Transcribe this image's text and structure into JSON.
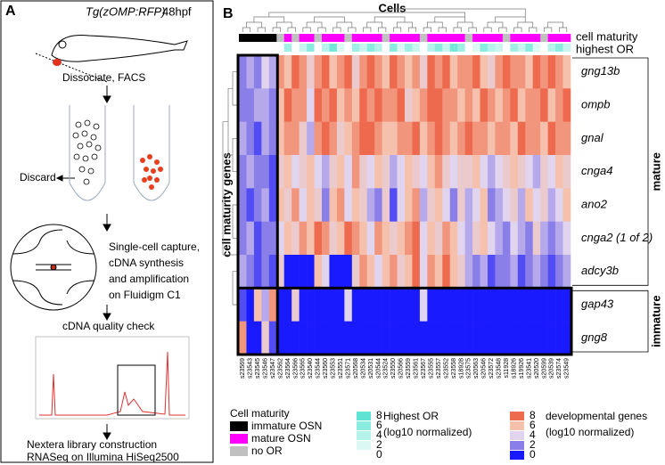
{
  "panel_a": {
    "label": "A",
    "line_name": "Tg(zOMP:RFP)",
    "stage": "48hpf",
    "step1": "Dissociate, FACS",
    "discard": "Discard",
    "step2": [
      "Single-cell capture,",
      "cDNA synthesis",
      "and amplification",
      "on Fluidigm C1"
    ],
    "step3": "cDNA quality check",
    "step4": [
      "Nextera library construction",
      "RNASeq on Illumina HiSeq2500"
    ]
  },
  "panel_b": {
    "label": "B",
    "title": "Cells",
    "bar_labels": [
      "cell maturity",
      "highest OR"
    ],
    "row_axis_label": "cell maturity genes",
    "genes": [
      "gng13b",
      "ompb",
      "gnal",
      "cnga4",
      "ano2",
      "cnga2 (1 of 2)",
      "adcy3b",
      "gap43",
      "gng8"
    ],
    "groups": [
      {
        "name": "mature",
        "rows": 7
      },
      {
        "name": "immature",
        "rows": 2
      }
    ],
    "cells": [
      "s23569",
      "s23543",
      "s23545",
      "s23546",
      "s23547",
      "s23562",
      "s23564",
      "s23566",
      "s23565",
      "s23540",
      "s23544",
      "s23560",
      "s23553",
      "s23551",
      "s23571",
      "s20568",
      "s20534",
      "s20531",
      "s20544",
      "s23524",
      "s23550",
      "s20566",
      "s23559",
      "s23561",
      "s23567",
      "s23555",
      "s23557",
      "s23552",
      "s23558",
      "s18928",
      "s23575",
      "s20563",
      "s20546",
      "s23572",
      "s23548",
      "s11928",
      "s18926",
      "s19926",
      "s23541",
      "s20520",
      "s20599",
      "s20539",
      "s23574",
      "s23549"
    ],
    "values": [
      [
        2,
        3,
        2,
        4,
        3,
        7,
        6,
        8,
        7,
        5,
        7,
        8,
        6,
        7,
        8,
        5,
        7,
        8,
        7,
        6,
        8,
        7,
        6,
        7,
        5,
        8,
        7,
        8,
        6,
        7,
        7,
        8,
        6,
        5,
        7,
        8,
        7,
        7,
        6,
        8,
        7,
        8,
        7,
        6
      ],
      [
        2,
        2,
        3,
        3,
        2,
        6,
        8,
        7,
        7,
        4,
        8,
        7,
        8,
        6,
        7,
        6,
        8,
        7,
        8,
        7,
        7,
        8,
        5,
        6,
        7,
        8,
        8,
        7,
        7,
        6,
        7,
        6,
        8,
        7,
        6,
        7,
        8,
        6,
        7,
        7,
        8,
        6,
        7,
        8
      ],
      [
        3,
        2,
        1,
        3,
        2,
        6,
        7,
        7,
        5,
        3,
        7,
        8,
        7,
        5,
        6,
        7,
        8,
        8,
        7,
        6,
        6,
        7,
        7,
        8,
        6,
        7,
        8,
        7,
        6,
        7,
        8,
        7,
        7,
        6,
        7,
        7,
        6,
        8,
        7,
        7,
        6,
        8,
        7,
        7
      ],
      [
        2,
        3,
        2,
        2,
        1,
        5,
        6,
        4,
        5,
        6,
        4,
        3,
        5,
        6,
        4,
        7,
        5,
        4,
        6,
        5,
        3,
        4,
        6,
        5,
        4,
        6,
        7,
        5,
        4,
        5,
        5,
        6,
        4,
        3,
        4,
        5,
        6,
        5,
        4,
        3,
        5,
        4,
        6,
        5
      ],
      [
        2,
        1,
        2,
        3,
        1,
        6,
        5,
        7,
        4,
        6,
        5,
        2,
        6,
        7,
        4,
        6,
        5,
        3,
        2,
        5,
        1,
        4,
        6,
        7,
        3,
        5,
        6,
        4,
        2,
        5,
        3,
        4,
        6,
        2,
        3,
        4,
        5,
        3,
        6,
        4,
        5,
        3,
        4,
        6
      ],
      [
        2,
        3,
        1,
        2,
        2,
        4,
        6,
        5,
        7,
        6,
        8,
        7,
        5,
        6,
        8,
        7,
        6,
        4,
        7,
        6,
        5,
        6,
        7,
        8,
        4,
        6,
        5,
        7,
        6,
        4,
        3,
        5,
        6,
        4,
        3,
        2,
        4,
        3,
        2,
        5,
        3,
        2,
        3,
        4
      ],
      [
        3,
        2,
        1,
        2,
        1,
        5,
        0,
        0,
        0,
        0,
        6,
        4,
        0,
        0,
        0,
        5,
        7,
        6,
        4,
        6,
        7,
        5,
        6,
        8,
        4,
        7,
        6,
        8,
        6,
        5,
        3,
        2,
        3,
        1,
        2,
        2,
        3,
        1,
        2,
        3,
        2,
        1,
        2,
        3
      ],
      [
        1,
        0,
        6,
        3,
        7,
        0,
        0,
        5,
        0,
        0,
        0,
        0,
        0,
        0,
        4,
        0,
        0,
        0,
        0,
        0,
        0,
        0,
        0,
        0,
        4,
        0,
        0,
        0,
        0,
        0,
        0,
        0,
        0,
        0,
        0,
        0,
        0,
        0,
        0,
        0,
        0,
        0,
        0,
        0
      ],
      [
        7,
        0,
        0,
        5,
        1,
        0,
        0,
        0,
        0,
        0,
        0,
        0,
        0,
        0,
        0,
        0,
        0,
        0,
        0,
        0,
        0,
        0,
        0,
        0,
        0,
        0,
        0,
        0,
        0,
        0,
        0,
        0,
        0,
        0,
        0,
        0,
        0,
        0,
        0,
        0,
        0,
        0,
        0,
        0
      ]
    ],
    "maturity": [
      "immature OSN",
      "immature OSN",
      "immature OSN",
      "immature OSN",
      "immature OSN",
      "no OR",
      "mature OSN",
      "no OR",
      "mature OSN",
      "mature OSN",
      "no OR",
      "mature OSN",
      "mature OSN",
      "mature OSN",
      "no OR",
      "mature OSN",
      "mature OSN",
      "mature OSN",
      "mature OSN",
      "no OR",
      "mature OSN",
      "mature OSN",
      "mature OSN",
      "mature OSN",
      "no OR",
      "mature OSN",
      "mature OSN",
      "mature OSN",
      "mature OSN",
      "mature OSN",
      "no OR",
      "mature OSN",
      "mature OSN",
      "mature OSN",
      "mature OSN",
      "no OR",
      "mature OSN",
      "mature OSN",
      "mature OSN",
      "mature OSN",
      "no OR",
      "mature OSN",
      "mature OSN",
      "mature OSN"
    ],
    "highest_or": [
      0,
      0,
      0,
      0,
      0,
      0,
      5,
      0,
      3,
      6,
      0,
      4,
      7,
      2,
      0,
      5,
      3,
      6,
      4,
      0,
      6,
      2,
      5,
      3,
      0,
      4,
      6,
      3,
      7,
      5,
      0,
      2,
      6,
      4,
      3,
      0,
      5,
      3,
      6,
      2,
      0,
      4,
      6,
      3
    ],
    "legend_maturity": {
      "title": "Cell maturity",
      "entries": [
        {
          "name": "immature OSN",
          "color": "#000000"
        },
        {
          "name": "mature OSN",
          "color": "#ff00ff"
        },
        {
          "name": "no OR",
          "color": "#c0c0c0"
        }
      ]
    },
    "legend_or": {
      "title": "Highest OR",
      "subtitle": "(log10 normalized)",
      "ticks": [
        8,
        6,
        4,
        2,
        0
      ],
      "colors": [
        "#5fe3d3",
        "#8aebe0",
        "#b5f2eb",
        "#dcf8f5",
        "#ffffff"
      ]
    },
    "legend_dev": {
      "title": "developmental genes",
      "subtitle": "(log10 normalized)",
      "ticks": [
        8,
        6,
        4,
        2,
        0
      ],
      "colors": [
        "#ee6a4e",
        "#f5c0ac",
        "#e0d4ee",
        "#8a7ee8",
        "#1a1aff"
      ]
    }
  }
}
